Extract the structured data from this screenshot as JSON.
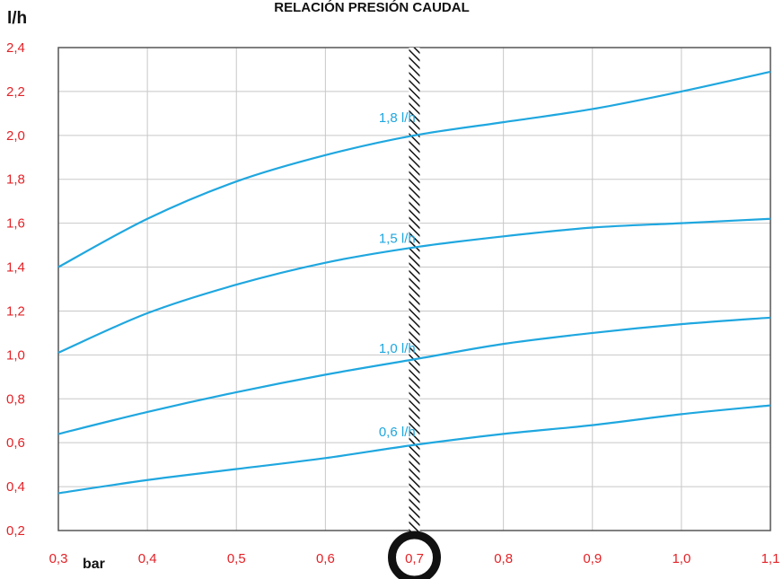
{
  "chart_data": {
    "type": "line",
    "title": "RELACIÓN PRESIÓN CAUDAL",
    "ylabel": "l/h",
    "xlabel": "bar",
    "xlim": [
      0.3,
      1.1
    ],
    "ylim": [
      0.2,
      2.4
    ],
    "x_ticks": [
      "0,3",
      "0,4",
      "0,5",
      "0,6",
      "0,7",
      "0,8",
      "0,9",
      "1,0",
      "1,1"
    ],
    "y_ticks": [
      "0,2",
      "0,4",
      "0,6",
      "0,8",
      "1,0",
      "1,2",
      "1,4",
      "1,6",
      "1,8",
      "2,0",
      "2,2",
      "2,4"
    ],
    "grid": true,
    "highlight_x": {
      "value": 0.7,
      "label": "0,7"
    },
    "series": [
      {
        "name": "0,6 l/h",
        "x": [
          0.3,
          0.4,
          0.5,
          0.6,
          0.7,
          0.8,
          0.9,
          1.0,
          1.1
        ],
        "y": [
          0.37,
          0.43,
          0.48,
          0.53,
          0.59,
          0.64,
          0.68,
          0.73,
          0.77
        ],
        "label_at": [
          0.66,
          0.63
        ]
      },
      {
        "name": "1,0 l/h",
        "x": [
          0.3,
          0.4,
          0.5,
          0.6,
          0.7,
          0.8,
          0.9,
          1.0,
          1.1
        ],
        "y": [
          0.64,
          0.74,
          0.83,
          0.91,
          0.98,
          1.05,
          1.1,
          1.14,
          1.17
        ],
        "label_at": [
          0.66,
          1.01
        ]
      },
      {
        "name": "1,5 l/h",
        "x": [
          0.3,
          0.4,
          0.5,
          0.6,
          0.7,
          0.8,
          0.9,
          1.0,
          1.1
        ],
        "y": [
          1.01,
          1.19,
          1.32,
          1.42,
          1.49,
          1.54,
          1.58,
          1.6,
          1.62
        ],
        "label_at": [
          0.66,
          1.51
        ]
      },
      {
        "name": "1,8 l/h",
        "x": [
          0.3,
          0.4,
          0.5,
          0.6,
          0.7,
          0.8,
          0.9,
          1.0,
          1.1
        ],
        "y": [
          1.4,
          1.62,
          1.79,
          1.91,
          2.0,
          2.06,
          2.12,
          2.2,
          2.29
        ],
        "label_at": [
          0.66,
          2.06
        ]
      }
    ],
    "colors": {
      "series": "#1fa7df",
      "tick_labels": "#e32227",
      "grid": "#c8c8c8",
      "axes": "#555555",
      "highlight": "#111111"
    }
  }
}
